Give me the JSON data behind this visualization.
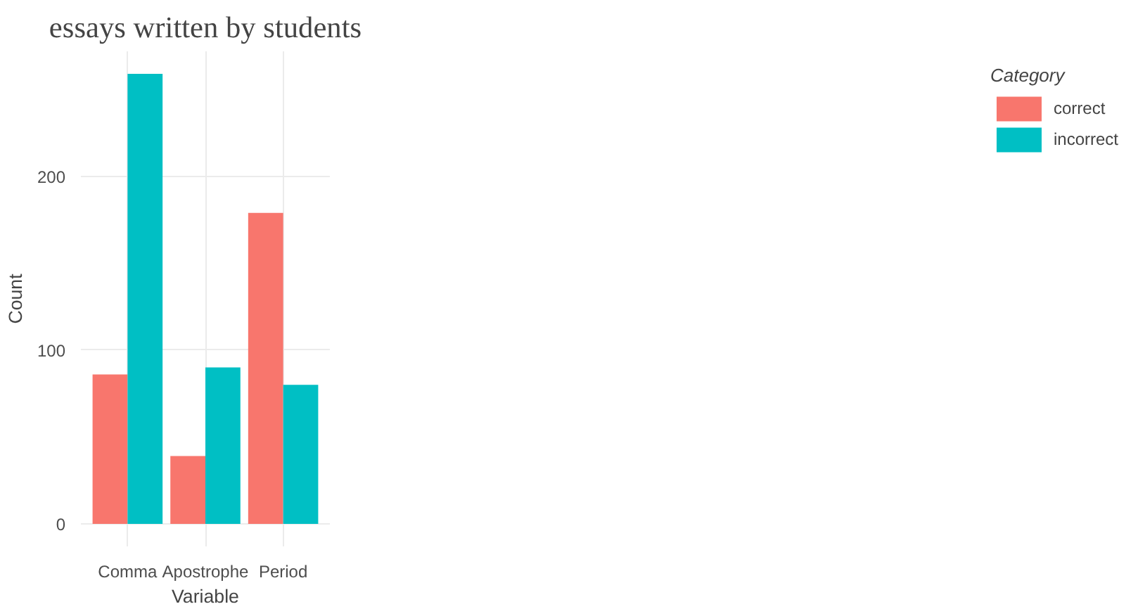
{
  "chart_data": {
    "type": "bar",
    "title": "essays written by students",
    "xlabel": "Variable",
    "ylabel": "Count",
    "legend_title": "Category",
    "categories": [
      "Comma",
      "Apostrophe",
      "Period"
    ],
    "series": [
      {
        "name": "correct",
        "color": "#f8766d",
        "values": [
          86,
          39,
          179
        ]
      },
      {
        "name": "incorrect",
        "color": "#00bfc4",
        "values": [
          259,
          90,
          80
        ]
      }
    ],
    "ylim": [
      -13,
      272
    ],
    "yticks": [
      0,
      100,
      200
    ],
    "grid": true,
    "legend": "right"
  }
}
